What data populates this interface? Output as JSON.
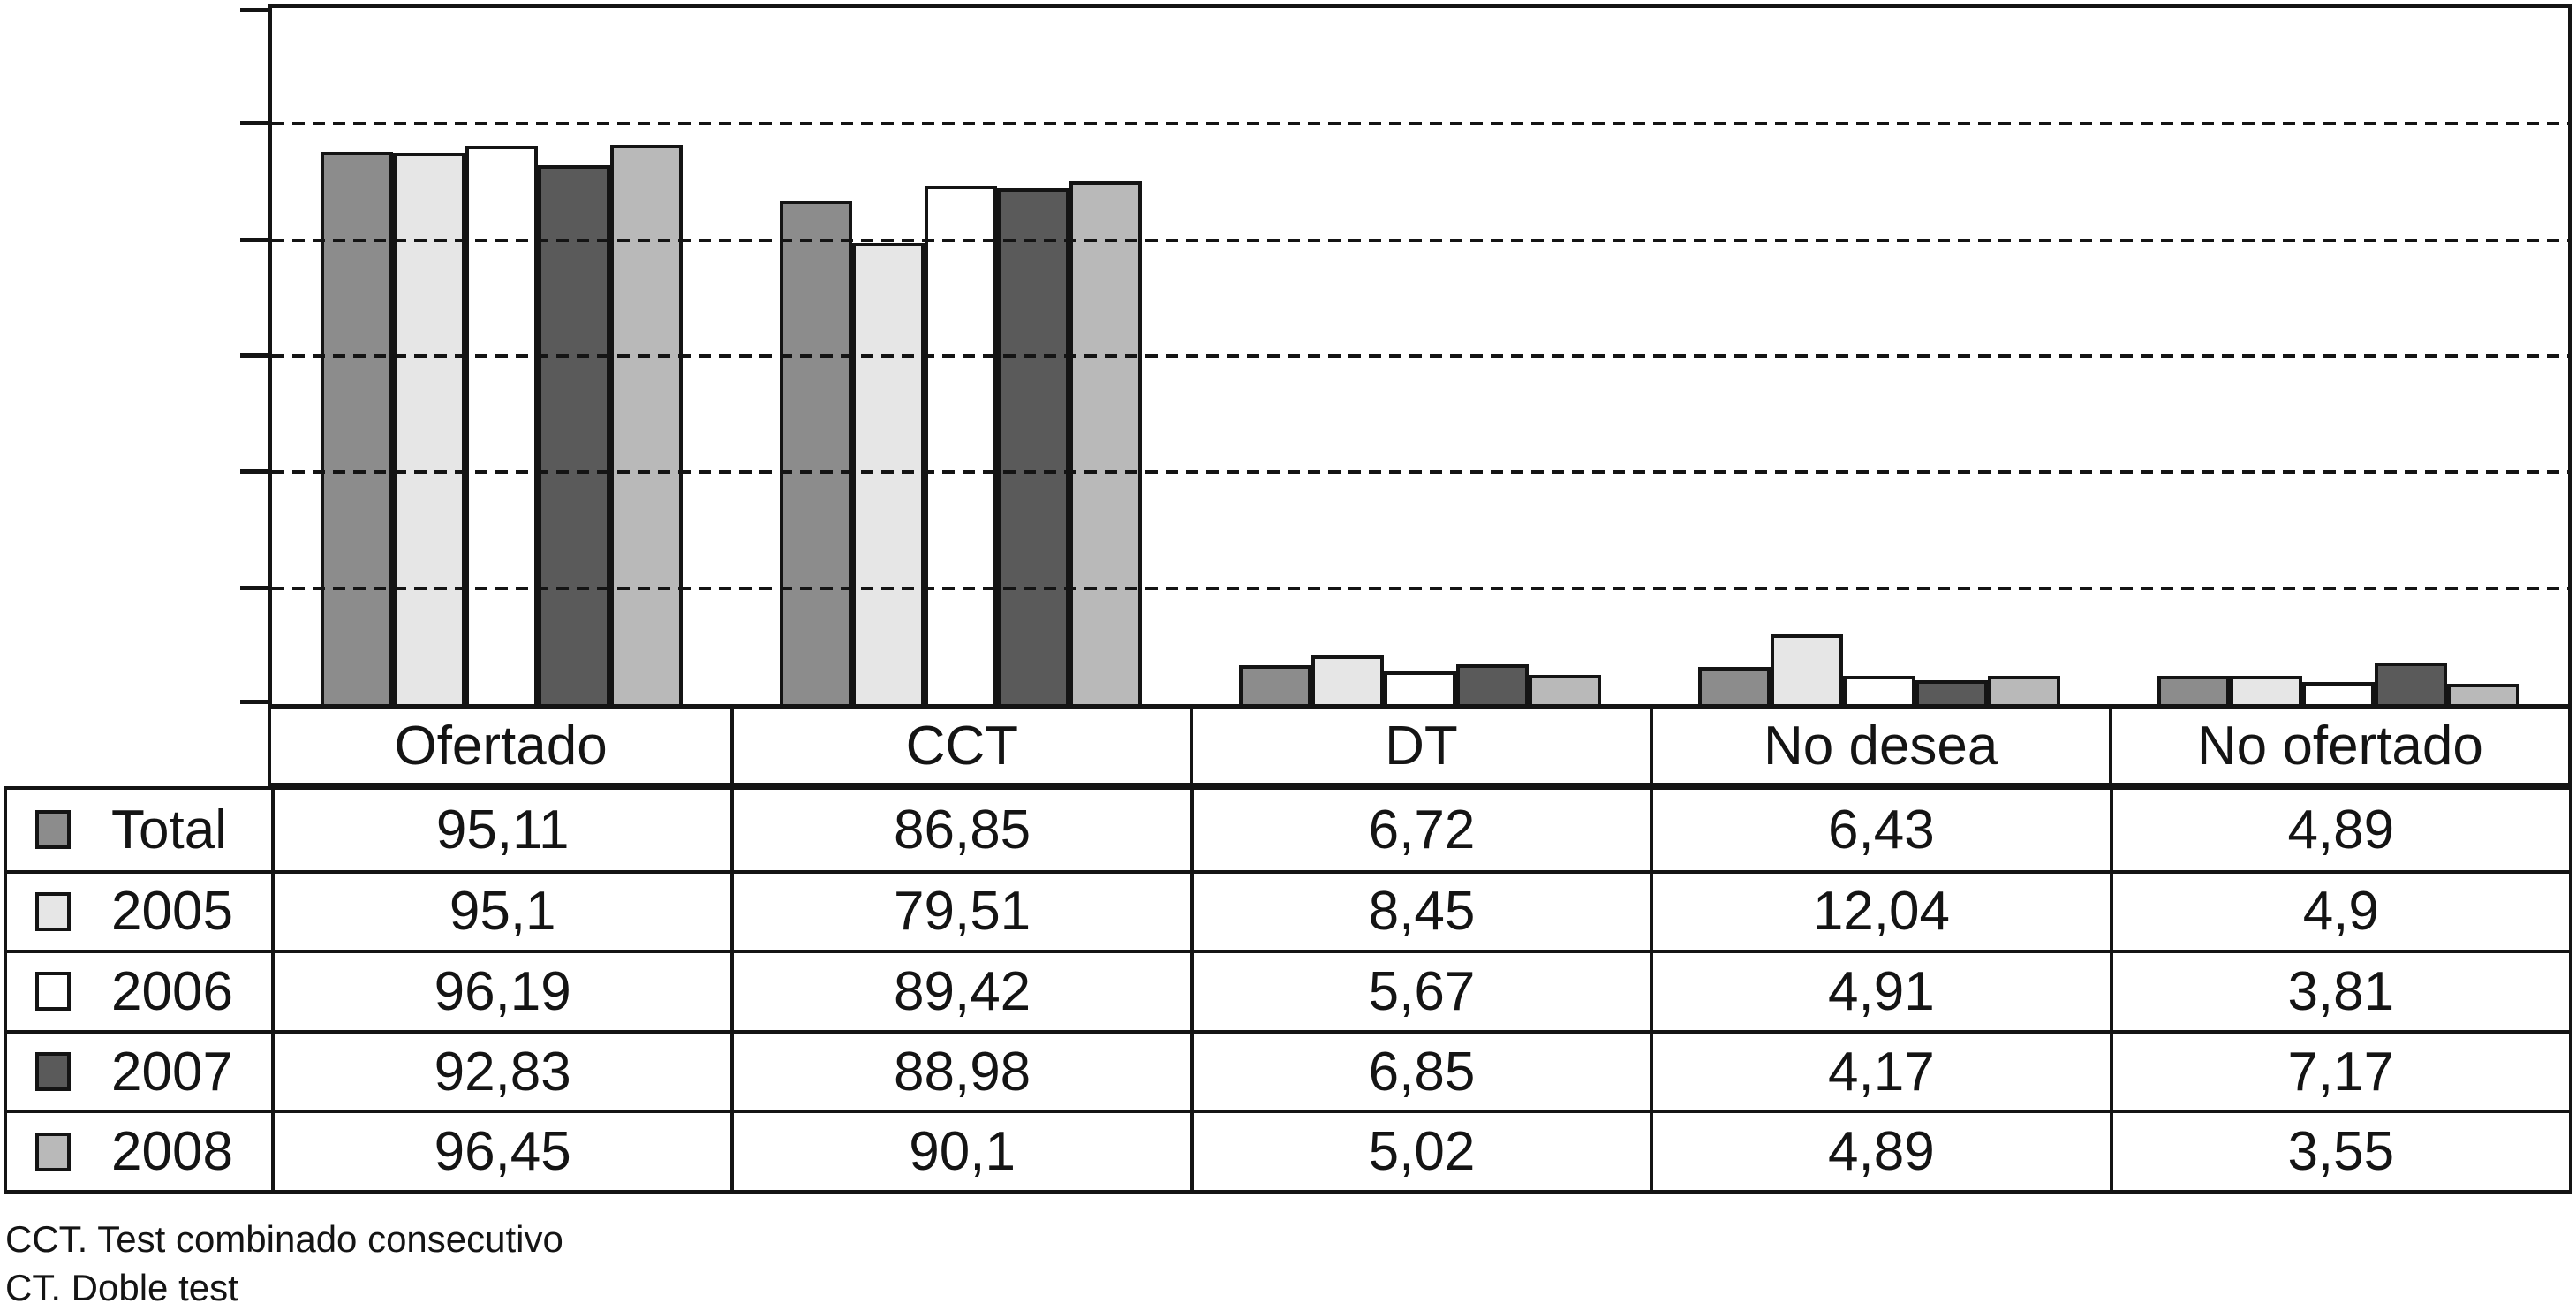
{
  "figure": {
    "footnotes": [
      "CCT. Test combinado consecutivo",
      "CT. Doble test"
    ]
  },
  "chart_data": {
    "type": "bar",
    "title": "",
    "xlabel": "",
    "ylabel": "",
    "categories": [
      "Ofertado",
      "CCT",
      "DT",
      "No desea",
      "No ofertado"
    ],
    "series": [
      {
        "name": "Total",
        "color": "#8c8c8c",
        "values": [
          95.11,
          86.85,
          6.72,
          6.43,
          4.89
        ]
      },
      {
        "name": "2005",
        "color": "#e6e6e6",
        "values": [
          95.1,
          79.51,
          8.45,
          12.04,
          4.9
        ]
      },
      {
        "name": "2006",
        "color": "#ffffff",
        "values": [
          96.19,
          89.42,
          5.67,
          4.91,
          3.81
        ]
      },
      {
        "name": "2007",
        "color": "#5a5a5a",
        "values": [
          92.83,
          88.98,
          6.85,
          4.17,
          7.17
        ]
      },
      {
        "name": "2008",
        "color": "#b9b9b9",
        "values": [
          96.45,
          90.1,
          5.02,
          4.89,
          3.55
        ]
      }
    ],
    "ylim": [
      0,
      120
    ],
    "gridline_step": 20,
    "grid": "horizontal-dashed",
    "y_tick_labels_visible": false,
    "legend_position": "table-left-column"
  },
  "table": {
    "headers": [
      "Ofertado",
      "CCT",
      "DT",
      "No desea",
      "No ofertado"
    ],
    "rows": [
      {
        "label": "Total",
        "values": [
          "95,11",
          "86,85",
          "6,72",
          "6,43",
          "4,89"
        ]
      },
      {
        "label": "2005",
        "values": [
          "95,1",
          "79,51",
          "8,45",
          "12,04",
          "4,9"
        ]
      },
      {
        "label": "2006",
        "values": [
          "96,19",
          "89,42",
          "5,67",
          "4,91",
          "3,81"
        ]
      },
      {
        "label": "2007",
        "values": [
          "92,83",
          "88,98",
          "6,85",
          "4,17",
          "7,17"
        ]
      },
      {
        "label": "2008",
        "values": [
          "96,45",
          "90,1",
          "5,02",
          "4,89",
          "3,55"
        ]
      }
    ]
  },
  "colors": {
    "line": "#141414",
    "background": "#ffffff"
  }
}
